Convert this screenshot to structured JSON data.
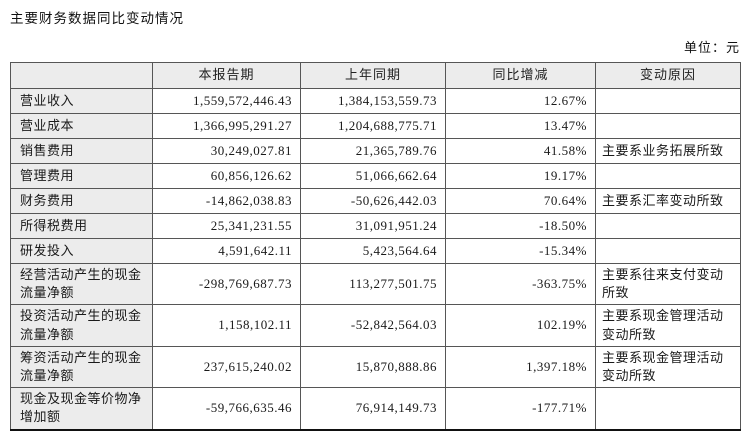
{
  "page": {
    "title": "主要财务数据同比变动情况",
    "unit_note": "单位：元"
  },
  "table": {
    "columns": [
      "",
      "本报告期",
      "上年同期",
      "同比增减",
      "变动原因"
    ],
    "rows": [
      {
        "label": "营业收入",
        "current": "1,559,572,446.43",
        "prior": "1,384,153,559.73",
        "change": "12.67%",
        "reason": ""
      },
      {
        "label": "营业成本",
        "current": "1,366,995,291.27",
        "prior": "1,204,688,775.71",
        "change": "13.47%",
        "reason": ""
      },
      {
        "label": "销售费用",
        "current": "30,249,027.81",
        "prior": "21,365,789.76",
        "change": "41.58%",
        "reason": "主要系业务拓展所致"
      },
      {
        "label": "管理费用",
        "current": "60,856,126.62",
        "prior": "51,066,662.64",
        "change": "19.17%",
        "reason": ""
      },
      {
        "label": "财务费用",
        "current": "-14,862,038.83",
        "prior": "-50,626,442.03",
        "change": "70.64%",
        "reason": "主要系汇率变动所致"
      },
      {
        "label": "所得税费用",
        "current": "25,341,231.55",
        "prior": "31,091,951.24",
        "change": "-18.50%",
        "reason": ""
      },
      {
        "label": "研发投入",
        "current": "4,591,642.11",
        "prior": "5,423,564.64",
        "change": "-15.34%",
        "reason": ""
      },
      {
        "label": "经营活动产生的现金流量净额",
        "current": "-298,769,687.73",
        "prior": "113,277,501.75",
        "change": "-363.75%",
        "reason": "主要系往来支付变动所致"
      },
      {
        "label": "投资活动产生的现金流量净额",
        "current": "1,158,102.11",
        "prior": "-52,842,564.03",
        "change": "102.19%",
        "reason": "主要系现金管理活动变动所致"
      },
      {
        "label": "筹资活动产生的现金流量净额",
        "current": "237,615,240.02",
        "prior": "15,870,888.86",
        "change": "1,397.18%",
        "reason": "主要系现金管理活动变动所致"
      },
      {
        "label": "现金及现金等价物净增加额",
        "current": "-59,766,635.46",
        "prior": "76,914,149.73",
        "change": "-177.71%",
        "reason": ""
      }
    ]
  },
  "colors": {
    "header_bg": "#ececec",
    "grid_border": "#565656",
    "bottom_border": "#111111",
    "text": "#1a1a1a"
  }
}
